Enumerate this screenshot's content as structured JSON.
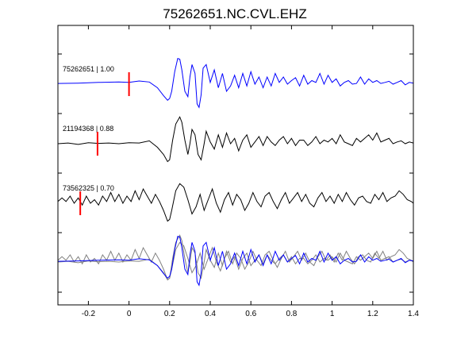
{
  "chart_data": {
    "type": "line",
    "title": "75262651.NC.CVL.EHZ",
    "xlabel": "",
    "ylabel": "",
    "xlim": [
      -0.35,
      1.4
    ],
    "xticks": [
      -0.2,
      0,
      0.2,
      0.4,
      0.6,
      0.8,
      1,
      1.2,
      1.4
    ],
    "xtick_labels": [
      "-0.2",
      "0",
      "0.2",
      "0.4",
      "0.6",
      "0.8",
      "1",
      "1.2",
      "1.4"
    ],
    "grid": false,
    "legend": "none",
    "colors": {
      "reference_trace": "#0000ff",
      "other_trace": "#000000",
      "overlay_other": "#808080",
      "pick_marker": "#ff0000",
      "axes": "#000000"
    },
    "trace_labels": [
      "75262651 | 1.00",
      "21194368 | 0.88",
      "73562325 | 0.70"
    ],
    "pick_times": [
      0.0,
      -0.155,
      -0.24
    ],
    "panels": [
      {
        "id": "75262651",
        "color": "#0000ff",
        "x": [
          -0.35,
          -0.25,
          -0.15,
          -0.05,
          0.0,
          0.05,
          0.1,
          0.14,
          0.17,
          0.19,
          0.2,
          0.21,
          0.225,
          0.24,
          0.25,
          0.26,
          0.275,
          0.29,
          0.3,
          0.31,
          0.325,
          0.335,
          0.345,
          0.355,
          0.365,
          0.38,
          0.4,
          0.42,
          0.44,
          0.46,
          0.48,
          0.5,
          0.52,
          0.54,
          0.56,
          0.58,
          0.6,
          0.62,
          0.64,
          0.66,
          0.68,
          0.7,
          0.72,
          0.74,
          0.76,
          0.78,
          0.8,
          0.82,
          0.84,
          0.86,
          0.88,
          0.9,
          0.92,
          0.94,
          0.96,
          0.98,
          1.0,
          1.02,
          1.04,
          1.06,
          1.08,
          1.1,
          1.12,
          1.14,
          1.16,
          1.18,
          1.2,
          1.22,
          1.24,
          1.26,
          1.28,
          1.3,
          1.32,
          1.34,
          1.36,
          1.38,
          1.4
        ],
        "y": [
          0.02,
          0.03,
          0.05,
          0.06,
          0.05,
          0.09,
          0.06,
          -0.1,
          -0.32,
          -0.45,
          -0.4,
          -0.2,
          0.35,
          0.72,
          0.7,
          0.4,
          -0.2,
          -0.35,
          0.2,
          0.55,
          0.3,
          -0.55,
          -0.65,
          -0.3,
          0.45,
          0.55,
          0.05,
          0.4,
          -0.1,
          0.3,
          -0.2,
          -0.05,
          0.25,
          -0.1,
          0.3,
          -0.05,
          0.35,
          0.0,
          0.2,
          -0.1,
          0.2,
          -0.05,
          0.3,
          0.05,
          0.2,
          0.0,
          0.1,
          0.18,
          -0.05,
          0.25,
          0.0,
          0.1,
          0.05,
          0.3,
          0.0,
          0.25,
          0.05,
          0.15,
          -0.05,
          0.05,
          0.1,
          0.0,
          0.02,
          0.2,
          0.0,
          0.15,
          0.05,
          0.1,
          0.02,
          0.05,
          0.08,
          0.0,
          0.05,
          0.1,
          -0.02,
          0.05,
          0.03
        ]
      },
      {
        "id": "21194368",
        "color": "#000000",
        "x": [
          -0.35,
          -0.3,
          -0.25,
          -0.2,
          -0.15,
          -0.1,
          -0.05,
          0.0,
          0.05,
          0.1,
          0.14,
          0.17,
          0.19,
          0.2,
          0.215,
          0.23,
          0.25,
          0.26,
          0.275,
          0.29,
          0.3,
          0.31,
          0.325,
          0.34,
          0.355,
          0.37,
          0.38,
          0.4,
          0.42,
          0.44,
          0.46,
          0.48,
          0.5,
          0.52,
          0.54,
          0.56,
          0.58,
          0.6,
          0.62,
          0.64,
          0.66,
          0.68,
          0.7,
          0.72,
          0.74,
          0.76,
          0.78,
          0.8,
          0.82,
          0.84,
          0.86,
          0.88,
          0.9,
          0.92,
          0.94,
          0.96,
          0.98,
          1.0,
          1.02,
          1.04,
          1.06,
          1.08,
          1.1,
          1.12,
          1.14,
          1.16,
          1.18,
          1.2,
          1.22,
          1.24,
          1.26,
          1.28,
          1.3,
          1.32,
          1.34,
          1.36,
          1.38,
          1.4
        ],
        "y": [
          0.0,
          0.02,
          -0.02,
          0.03,
          0.01,
          0.02,
          0.0,
          0.03,
          0.02,
          0.08,
          -0.1,
          -0.3,
          -0.5,
          -0.45,
          0.1,
          0.55,
          0.75,
          0.6,
          0.1,
          -0.3,
          0.0,
          0.4,
          0.25,
          -0.3,
          -0.45,
          0.0,
          0.35,
          0.05,
          -0.15,
          0.25,
          -0.1,
          0.3,
          0.0,
          0.15,
          -0.2,
          0.1,
          0.25,
          -0.1,
          0.05,
          0.2,
          -0.05,
          0.2,
          0.05,
          -0.05,
          0.1,
          0.2,
          0.0,
          0.15,
          -0.05,
          0.1,
          0.1,
          -0.05,
          0.05,
          0.2,
          0.0,
          0.1,
          0.05,
          0.15,
          0.0,
          0.25,
          0.05,
          0.0,
          -0.05,
          0.15,
          0.05,
          0.15,
          0.25,
          0.1,
          0.3,
          0.05,
          0.1,
          0.15,
          0.0,
          0.05,
          0.08,
          0.0,
          0.05,
          0.02
        ]
      },
      {
        "id": "73562325",
        "color": "#000000",
        "x": [
          -0.35,
          -0.33,
          -0.31,
          -0.29,
          -0.27,
          -0.25,
          -0.23,
          -0.21,
          -0.19,
          -0.17,
          -0.15,
          -0.13,
          -0.11,
          -0.09,
          -0.07,
          -0.05,
          -0.03,
          -0.01,
          0.01,
          0.03,
          0.05,
          0.07,
          0.09,
          0.11,
          0.13,
          0.15,
          0.17,
          0.19,
          0.2,
          0.21,
          0.23,
          0.25,
          0.27,
          0.29,
          0.31,
          0.33,
          0.35,
          0.37,
          0.39,
          0.41,
          0.43,
          0.45,
          0.47,
          0.49,
          0.51,
          0.53,
          0.55,
          0.57,
          0.59,
          0.61,
          0.63,
          0.65,
          0.67,
          0.69,
          0.71,
          0.73,
          0.75,
          0.77,
          0.79,
          0.81,
          0.83,
          0.85,
          0.87,
          0.89,
          0.91,
          0.93,
          0.95,
          0.97,
          0.99,
          1.01,
          1.03,
          1.05,
          1.07,
          1.09,
          1.11,
          1.13,
          1.15,
          1.17,
          1.19,
          1.21,
          1.23,
          1.25,
          1.27,
          1.29,
          1.31,
          1.33,
          1.35,
          1.37,
          1.39,
          1.4
        ],
        "y": [
          0.05,
          0.15,
          0.05,
          0.2,
          0.0,
          0.15,
          -0.05,
          0.2,
          0.0,
          0.1,
          -0.05,
          0.2,
          0.05,
          0.3,
          0.05,
          0.25,
          0.0,
          0.2,
          0.05,
          0.35,
          0.1,
          0.4,
          0.2,
          0.0,
          0.25,
          0.05,
          -0.2,
          -0.5,
          -0.45,
          -0.2,
          0.35,
          0.55,
          0.45,
          0.1,
          -0.3,
          -0.1,
          0.25,
          -0.2,
          0.1,
          0.4,
          0.0,
          -0.25,
          0.1,
          0.3,
          -0.05,
          0.25,
          0.1,
          -0.2,
          0.0,
          0.3,
          0.05,
          -0.1,
          0.2,
          0.3,
          0.05,
          -0.15,
          0.1,
          0.3,
          0.0,
          0.15,
          0.3,
          0.05,
          0.25,
          0.0,
          -0.1,
          0.15,
          0.3,
          0.05,
          0.2,
          0.0,
          0.25,
          0.05,
          0.3,
          0.1,
          -0.05,
          0.15,
          0.2,
          0.05,
          0.0,
          0.25,
          0.1,
          0.3,
          0.05,
          0.15,
          0.2,
          0.35,
          0.25,
          0.1,
          0.05,
          0.0
        ]
      }
    ]
  }
}
